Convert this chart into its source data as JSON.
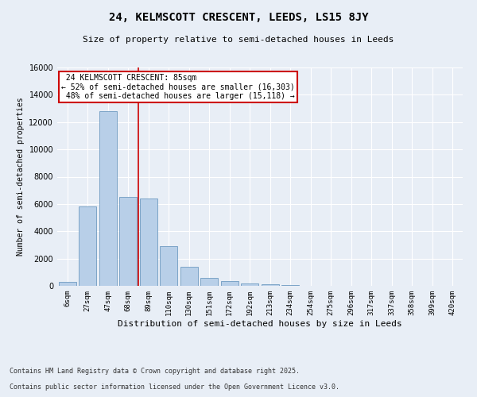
{
  "title1": "24, KELMSCOTT CRESCENT, LEEDS, LS15 8JY",
  "title2": "Size of property relative to semi-detached houses in Leeds",
  "xlabel": "Distribution of semi-detached houses by size in Leeds",
  "ylabel": "Number of semi-detached properties",
  "categories": [
    "6sqm",
    "27sqm",
    "47sqm",
    "68sqm",
    "89sqm",
    "110sqm",
    "130sqm",
    "151sqm",
    "172sqm",
    "192sqm",
    "213sqm",
    "234sqm",
    "254sqm",
    "275sqm",
    "296sqm",
    "317sqm",
    "337sqm",
    "358sqm",
    "399sqm",
    "420sqm"
  ],
  "values": [
    300,
    5800,
    12800,
    6500,
    6400,
    2900,
    1400,
    600,
    350,
    200,
    100,
    40,
    10,
    2,
    1,
    0,
    0,
    0,
    0,
    0
  ],
  "bar_color": "#b8cfe8",
  "bar_edge_color": "#5b8db8",
  "property_sqm": 85,
  "pct_smaller": 52,
  "count_smaller": 16303,
  "pct_larger": 48,
  "count_larger": 15118,
  "annotation_label": "24 KELMSCOTT CRESCENT: 85sqm",
  "ylim": [
    0,
    16000
  ],
  "yticks": [
    0,
    2000,
    4000,
    6000,
    8000,
    10000,
    12000,
    14000,
    16000
  ],
  "footer1": "Contains HM Land Registry data © Crown copyright and database right 2025.",
  "footer2": "Contains public sector information licensed under the Open Government Licence v3.0.",
  "bg_color": "#e8eef6",
  "grid_color": "#ffffff",
  "annotation_box_color": "#ffffff",
  "annotation_box_edge": "#cc0000",
  "vline_color": "#cc0000",
  "title1_fontsize": 10,
  "title2_fontsize": 8,
  "ylabel_fontsize": 7,
  "xlabel_fontsize": 8,
  "tick_fontsize": 6.5,
  "footer_fontsize": 6,
  "annot_fontsize": 7
}
